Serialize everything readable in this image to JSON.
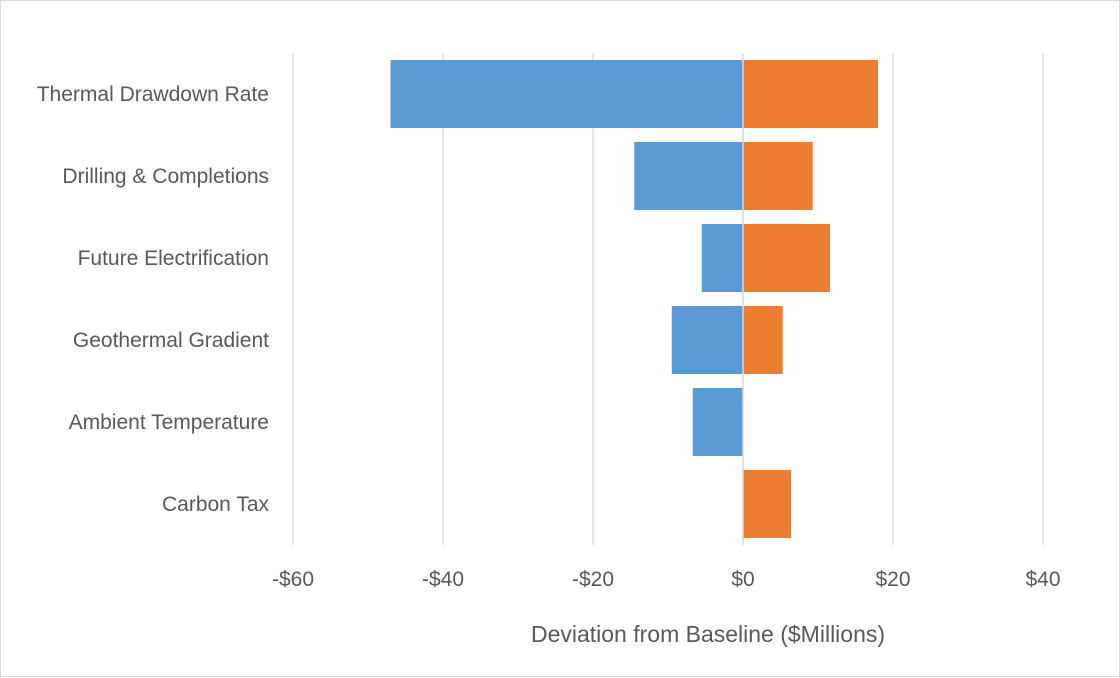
{
  "chart_data": {
    "type": "bar",
    "orientation": "horizontal",
    "stacked": true,
    "title": "",
    "categories": [
      "Thermal Drawdown Rate",
      "Drilling & Completions",
      "Future Electrification",
      "Geothermal Gradient",
      "Ambient Temperature",
      "Carbon Tax"
    ],
    "series": [
      {
        "color": "#5b9bd5",
        "values": [
          -47,
          -14.5,
          -5.5,
          -9.5,
          -6.7,
          0
        ]
      },
      {
        "color": "#ed7d31",
        "values": [
          18,
          9.3,
          11.6,
          5.3,
          0,
          6.4
        ]
      }
    ],
    "xlabel": "Deviation from Baseline ($Millions)",
    "ylabel": "",
    "xlim": [
      -60,
      40
    ],
    "xticks": [
      -60,
      -40,
      -20,
      0,
      20,
      40
    ],
    "xtick_labels": [
      "-$60",
      "-$40",
      "-$20",
      "$0",
      "$20",
      "$40"
    ],
    "grid": "vertical",
    "legend": "none"
  }
}
